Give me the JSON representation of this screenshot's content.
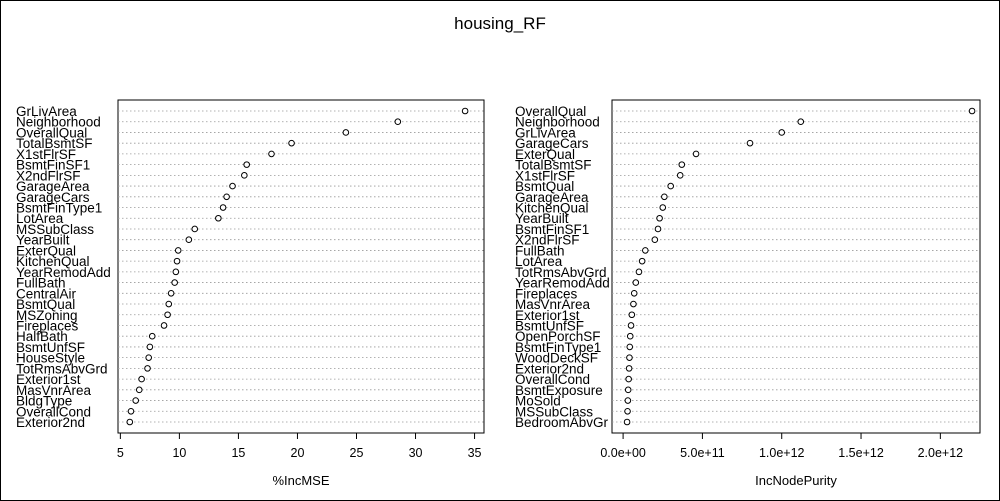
{
  "title": "housing_RF",
  "chart_data": [
    {
      "type": "scatter",
      "subtype": "dotchart",
      "xlabel": "%IncMSE",
      "xlim": [
        4.8,
        35.8
      ],
      "xticks": [
        5,
        10,
        15,
        20,
        25,
        30,
        35
      ],
      "xtick_labels": [
        "5",
        "10",
        "15",
        "20",
        "25",
        "30",
        "35"
      ],
      "grid": "dotted horizontal",
      "categories": [
        "GrLivArea",
        "Neighborhood",
        "OverallQual",
        "TotalBsmtSF",
        "X1stFlrSF",
        "BsmtFinSF1",
        "X2ndFlrSF",
        "GarageArea",
        "GarageCars",
        "BsmtFinType1",
        "LotArea",
        "MSSubClass",
        "YearBuilt",
        "ExterQual",
        "KitchenQual",
        "YearRemodAdd",
        "FullBath",
        "CentralAir",
        "BsmtQual",
        "MSZoning",
        "Fireplaces",
        "HalfBath",
        "BsmtUnfSF",
        "HouseStyle",
        "TotRmsAbvGrd",
        "Exterior1st",
        "MasVnrArea",
        "BldgType",
        "OverallCond",
        "Exterior2nd"
      ],
      "values": [
        34.2,
        28.5,
        24.1,
        19.5,
        17.8,
        15.7,
        15.5,
        14.5,
        14.0,
        13.7,
        13.3,
        11.3,
        10.8,
        9.9,
        9.8,
        9.7,
        9.6,
        9.3,
        9.1,
        9.0,
        8.7,
        7.7,
        7.5,
        7.4,
        7.3,
        6.8,
        6.6,
        6.3,
        5.9,
        5.8
      ]
    },
    {
      "type": "scatter",
      "subtype": "dotchart",
      "xlabel": "IncNodePurity",
      "xlim": [
        -70000000000.0,
        2250000000000.0
      ],
      "xticks": [
        0,
        500000000000.0,
        1000000000000.0,
        1500000000000.0,
        2000000000000.0
      ],
      "xtick_labels": [
        "0.0e+00",
        "5.0e+11",
        "1.0e+12",
        "1.5e+12",
        "2.0e+12"
      ],
      "grid": "dotted horizontal",
      "categories": [
        "OverallQual",
        "Neighborhood",
        "GrLivArea",
        "GarageCars",
        "ExterQual",
        "TotalBsmtSF",
        "X1stFlrSF",
        "BsmtQual",
        "GarageArea",
        "KitchenQual",
        "YearBuilt",
        "BsmtFinSF1",
        "X2ndFlrSF",
        "FullBath",
        "LotArea",
        "TotRmsAbvGrd",
        "YearRemodAdd",
        "Fireplaces",
        "MasVnrArea",
        "Exterior1st",
        "BsmtUnfSF",
        "OpenPorchSF",
        "BsmtFinType1",
        "WoodDeckSF",
        "Exterior2nd",
        "OverallCond",
        "BsmtExposure",
        "MoSold",
        "MSSubClass",
        "BedroomAbvGr"
      ],
      "values": [
        2200000000000.0,
        1120000000000.0,
        1000000000000.0,
        800000000000.0,
        460000000000.0,
        370000000000.0,
        360000000000.0,
        300000000000.0,
        260000000000.0,
        250000000000.0,
        230000000000.0,
        220000000000.0,
        200000000000.0,
        140000000000.0,
        120000000000.0,
        100000000000.0,
        80000000000.0,
        70000000000.0,
        65000000000.0,
        55000000000.0,
        50000000000.0,
        45000000000.0,
        42000000000.0,
        40000000000.0,
        38000000000.0,
        35000000000.0,
        32000000000.0,
        30000000000.0,
        28000000000.0,
        25000000000.0
      ]
    }
  ]
}
